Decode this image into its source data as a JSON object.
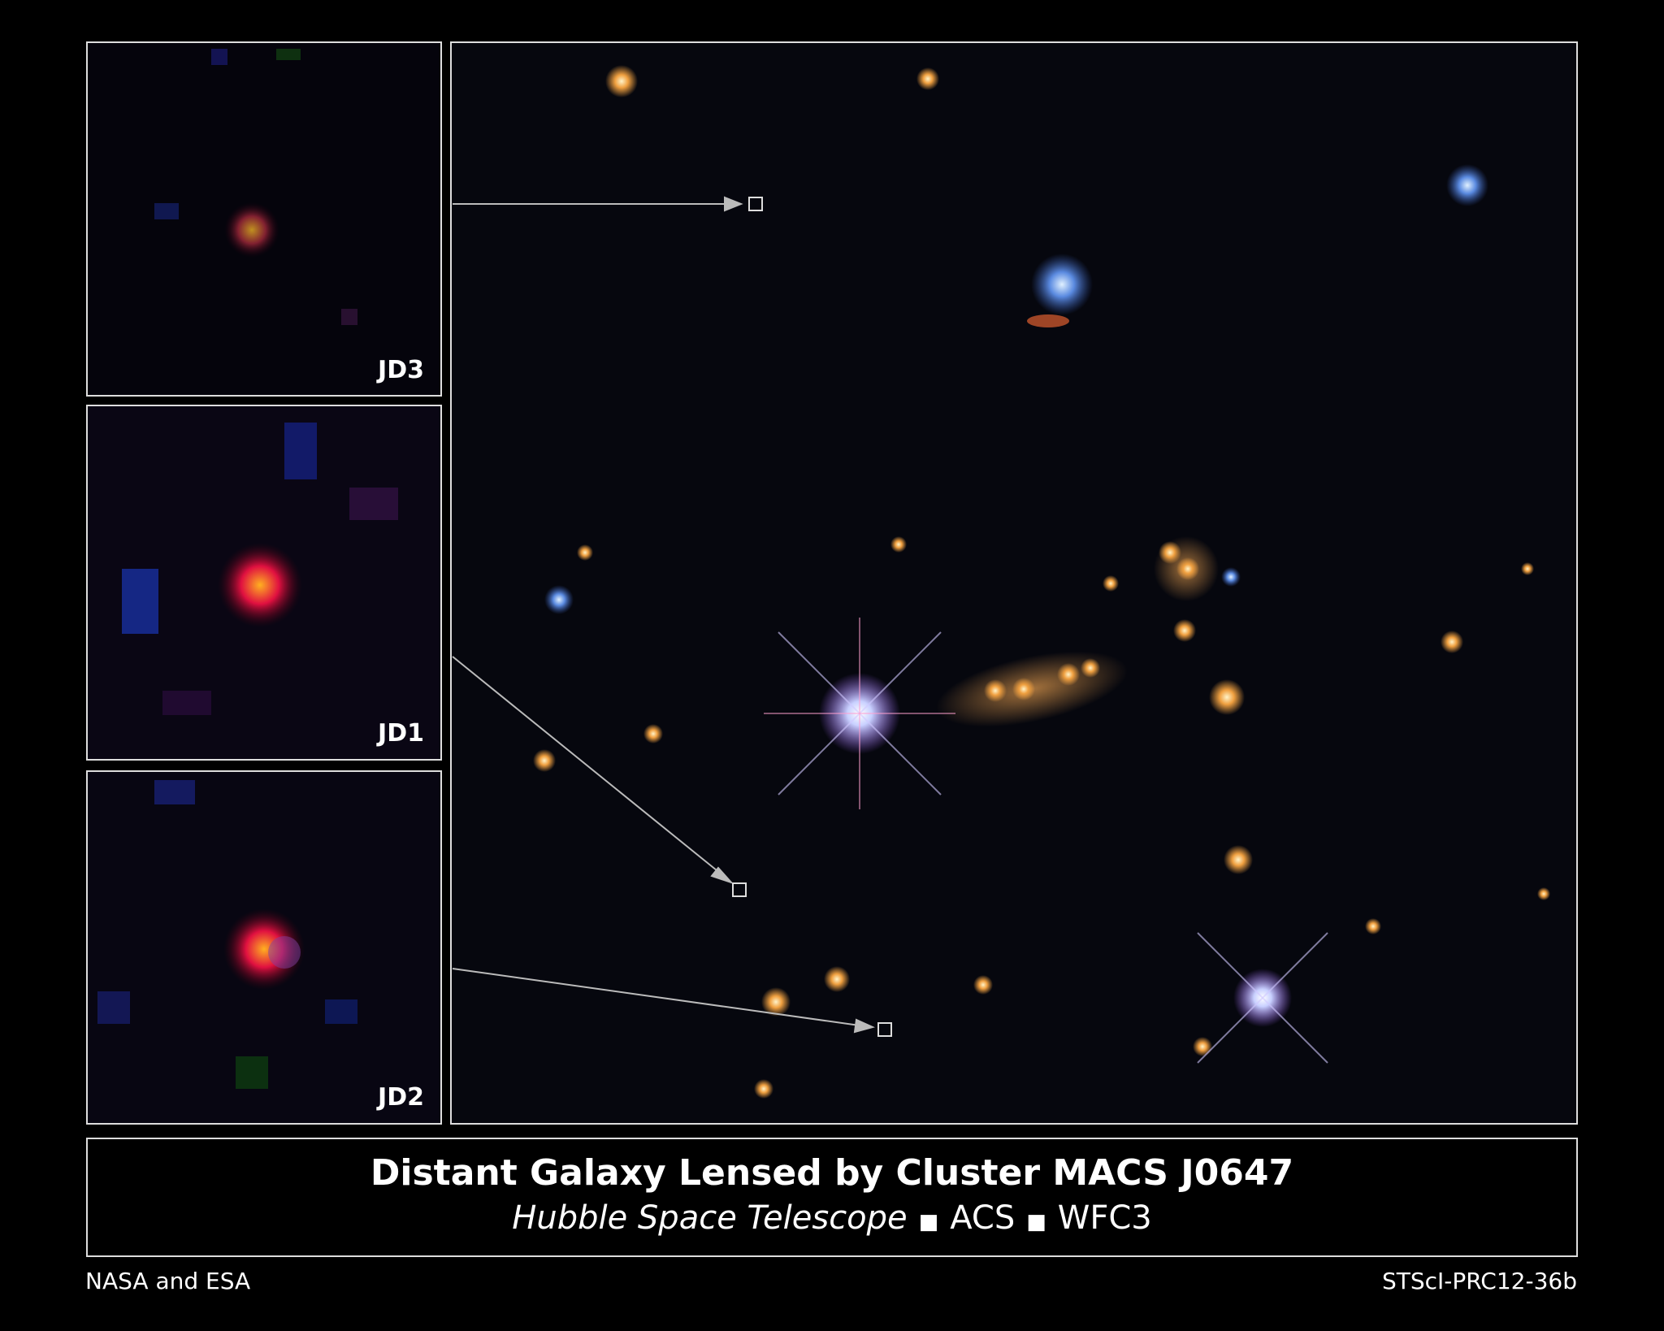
{
  "panels": [
    {
      "label": "JD3"
    },
    {
      "label": "JD1"
    },
    {
      "label": "JD2"
    }
  ],
  "caption": {
    "title": "Distant Galaxy Lensed by Cluster MACS J0647",
    "telescope": "Hubble Space Telescope",
    "instruments": [
      "ACS",
      "WFC3"
    ]
  },
  "credit": "NASA and ESA",
  "release_id": "STScI-PRC12-36b"
}
